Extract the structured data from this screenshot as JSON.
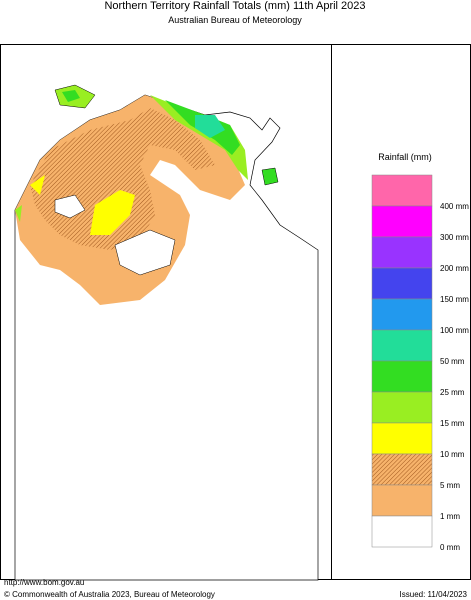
{
  "header": {
    "title": "Northern Territory Rainfall Totals (mm) 11th April 2023",
    "subtitle": "Australian Bureau of Meteorology"
  },
  "legend": {
    "title": "Rainfall (mm)",
    "swatches": [
      {
        "color": "#ff66aa"
      },
      {
        "color": "#ff00ff"
      },
      {
        "color": "#9933ff"
      },
      {
        "color": "#4444ee"
      },
      {
        "color": "#2299ee"
      },
      {
        "color": "#22dd99"
      },
      {
        "color": "#33dd22"
      },
      {
        "color": "#99ee22"
      },
      {
        "color": "#ffff00"
      },
      {
        "color": "#f7b36b",
        "pattern": "hatch"
      },
      {
        "color": "#f7b36b"
      },
      {
        "color": "#ffffff"
      }
    ],
    "labels": [
      "400 mm",
      "300 mm",
      "200 mm",
      "150 mm",
      "100 mm",
      "50 mm",
      "25 mm",
      "15 mm",
      "10 mm",
      "5 mm",
      "1 mm",
      "0 mm"
    ]
  },
  "footer": {
    "url": "http://www.bom.gov.au",
    "copyright": "© Commonwealth of Australia 2023, Bureau of Meteorology",
    "issued": "Issued: 11/04/2023"
  }
}
